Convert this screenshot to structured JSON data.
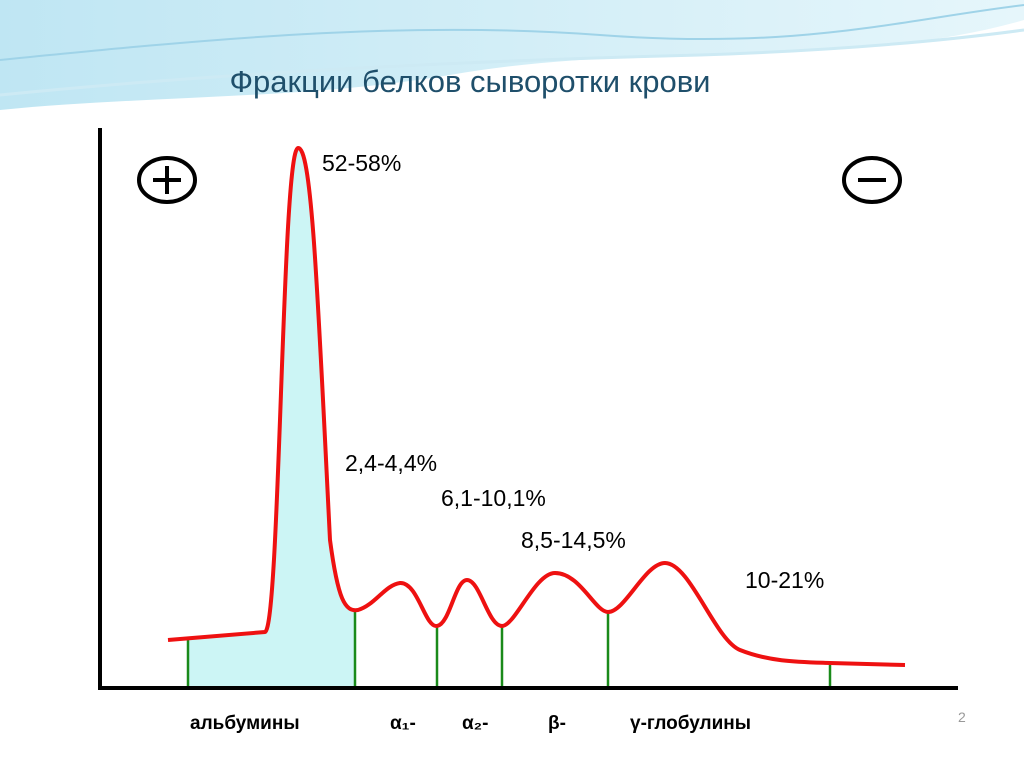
{
  "title": "Фракции белков сыворотки крови",
  "percentages": [
    "52-58%",
    "2,4-4,4%",
    "6,1-10,1%",
    "8,5-14,5%",
    "10-21%"
  ],
  "fractions": [
    "альбумины",
    "α₁-",
    "α₂-",
    "β-",
    "γ-глобулины"
  ],
  "slide_number": "2"
}
